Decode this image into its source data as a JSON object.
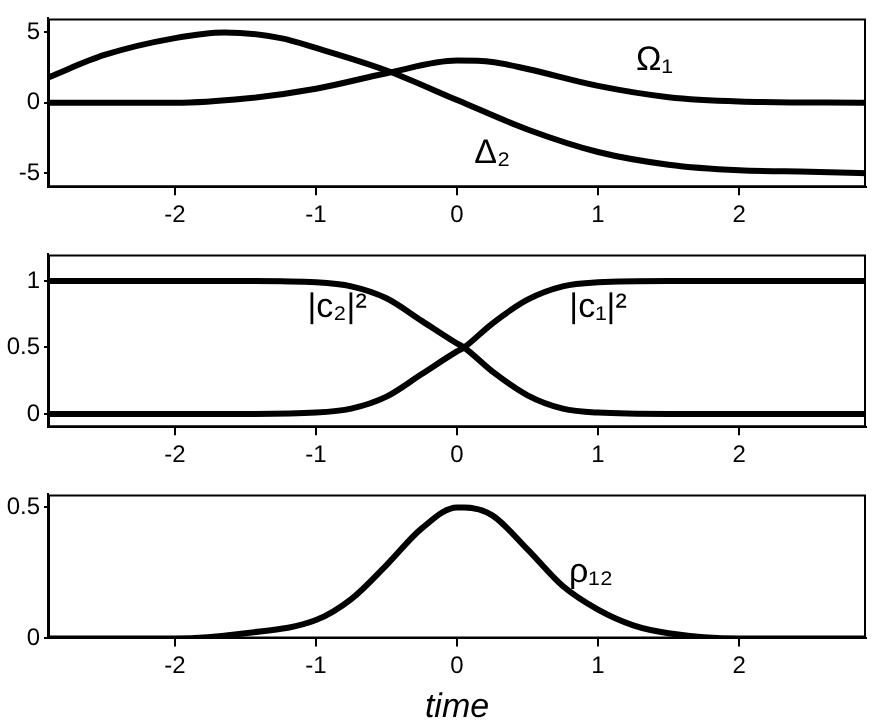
{
  "chart_data": [
    {
      "type": "line",
      "xlim": [
        -2.9,
        2.9
      ],
      "ylim": [
        -6,
        6
      ],
      "xticks": [
        -2,
        -1,
        0,
        1,
        2
      ],
      "yticks": [
        -5,
        0,
        5
      ],
      "grid": false,
      "series": [
        {
          "name": "Δ₂",
          "type": "line",
          "color": "#000000",
          "x": [
            -2.9,
            -2.5,
            -2,
            -1.65,
            -1.25,
            -1,
            -0.5,
            0,
            0.5,
            1,
            1.5,
            2,
            2.5,
            2.9
          ],
          "values": [
            1.8,
            3.4,
            4.6,
            5,
            4.6,
            3.9,
            2.3,
            0.2,
            -1.9,
            -3.5,
            -4.4,
            -4.8,
            -4.9,
            -5
          ]
        },
        {
          "name": "Ω₁",
          "type": "line",
          "color": "#000000",
          "x": [
            -2.9,
            -2,
            -1.5,
            -1,
            -0.5,
            0,
            0.25,
            0.5,
            1,
            1.5,
            2,
            2.9
          ],
          "values": [
            0,
            0,
            0.3,
            1,
            2.1,
            3,
            2.9,
            2.4,
            1.2,
            0.4,
            0.1,
            0
          ]
        }
      ]
    },
    {
      "type": "line",
      "xlim": [
        -2.9,
        2.9
      ],
      "ylim": [
        -0.1,
        1.2
      ],
      "xticks": [
        -2,
        -1,
        0,
        1,
        2
      ],
      "yticks": [
        0,
        0.5,
        1
      ],
      "grid": false,
      "series": [
        {
          "name": "|c₂|²",
          "type": "line",
          "color": "#000000",
          "x": [
            -2.9,
            -1.5,
            -1,
            -0.75,
            -0.5,
            -0.25,
            0,
            0.05,
            0.25,
            0.5,
            0.75,
            1,
            1.5,
            2.9
          ],
          "values": [
            1,
            1,
            0.99,
            0.96,
            0.87,
            0.7,
            0.53,
            0.5,
            0.32,
            0.14,
            0.04,
            0.01,
            0,
            0
          ]
        },
        {
          "name": "|c₁|²",
          "type": "line",
          "color": "#000000",
          "x": [
            -2.9,
            -1.5,
            -1,
            -0.75,
            -0.5,
            -0.25,
            0,
            0.05,
            0.25,
            0.5,
            0.75,
            1,
            1.5,
            2.9
          ],
          "values": [
            0,
            0,
            0.01,
            0.04,
            0.13,
            0.3,
            0.47,
            0.5,
            0.68,
            0.86,
            0.96,
            0.99,
            1,
            1
          ]
        }
      ]
    },
    {
      "type": "line",
      "xlim": [
        -2.9,
        2.9
      ],
      "ylim": [
        0,
        0.55
      ],
      "xticks": [
        -2,
        -1,
        0,
        1,
        2
      ],
      "yticks": [
        0,
        0.5
      ],
      "grid": false,
      "xlabel": "time",
      "series": [
        {
          "name": "ρ₁₂",
          "type": "line",
          "color": "#000000",
          "x": [
            -2.9,
            -2,
            -1.5,
            -1,
            -0.75,
            -0.5,
            -0.25,
            0,
            0.05,
            0.25,
            0.5,
            0.75,
            1,
            1.25,
            1.5,
            2,
            2.9
          ],
          "values": [
            0,
            0,
            0.02,
            0.07,
            0.15,
            0.28,
            0.42,
            0.5,
            0.5,
            0.47,
            0.34,
            0.2,
            0.11,
            0.05,
            0.02,
            0,
            0
          ]
        }
      ]
    }
  ]
}
